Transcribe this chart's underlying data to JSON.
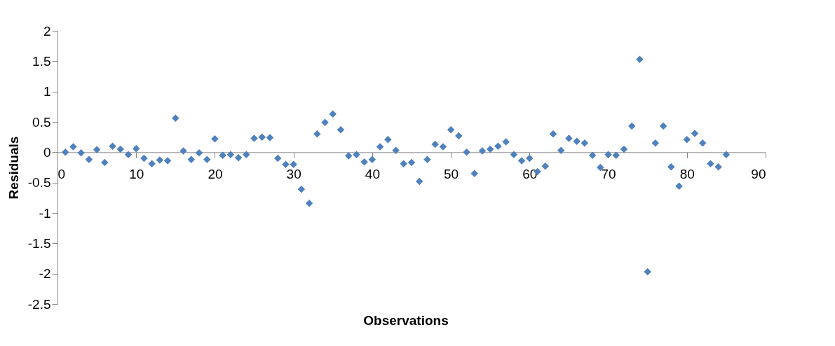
{
  "chart_data": {
    "type": "scatter",
    "xlabel": "Observations",
    "ylabel": "Residuals",
    "xlim": [
      0,
      90
    ],
    "xticks": [
      0,
      10,
      20,
      30,
      40,
      50,
      60,
      70,
      80,
      90
    ],
    "ylim": [
      -2.5,
      2
    ],
    "yticks": [
      -2.5,
      -2,
      -1.5,
      -1,
      -0.5,
      0,
      0.5,
      1,
      1.5,
      2
    ],
    "grid": false,
    "legend": false,
    "marker": "diamond",
    "series": [
      {
        "color": "#4f81bd",
        "x": [
          1,
          2,
          3,
          4,
          5,
          6,
          7,
          8,
          9,
          10,
          11,
          12,
          13,
          14,
          15,
          16,
          17,
          18,
          19,
          20,
          21,
          22,
          23,
          24,
          25,
          26,
          27,
          28,
          29,
          30,
          31,
          32,
          33,
          34,
          35,
          36,
          37,
          38,
          39,
          40,
          41,
          42,
          43,
          44,
          45,
          46,
          47,
          48,
          49,
          50,
          51,
          52,
          53,
          54,
          55,
          56,
          57,
          58,
          59,
          60,
          61,
          62,
          63,
          64,
          65,
          66,
          67,
          68,
          69,
          70,
          71,
          72,
          73,
          74,
          75,
          76,
          77,
          78,
          79,
          80,
          81,
          82,
          83,
          84,
          85
        ],
        "values": [
          0.0,
          0.09,
          -0.01,
          -0.12,
          0.04,
          -0.17,
          0.1,
          0.05,
          -0.04,
          0.06,
          -0.1,
          -0.19,
          -0.13,
          -0.14,
          0.56,
          0.02,
          -0.12,
          -0.01,
          -0.12,
          0.22,
          -0.05,
          -0.04,
          -0.09,
          -0.04,
          0.23,
          0.25,
          0.24,
          -0.1,
          -0.2,
          -0.2,
          -0.61,
          -0.84,
          0.3,
          0.49,
          0.63,
          0.37,
          -0.06,
          -0.04,
          -0.16,
          -0.12,
          0.09,
          0.21,
          0.03,
          -0.19,
          -0.17,
          -0.48,
          -0.12,
          0.13,
          0.09,
          0.37,
          0.27,
          0.0,
          -0.35,
          0.02,
          0.05,
          0.1,
          0.17,
          -0.04,
          -0.14,
          -0.1,
          -0.32,
          -0.23,
          0.3,
          0.03,
          0.23,
          0.18,
          0.15,
          -0.05,
          -0.25,
          -0.04,
          -0.05,
          0.05,
          0.43,
          1.53,
          -1.97,
          0.15,
          0.43,
          -0.24,
          -0.56,
          0.21,
          0.31,
          0.15,
          -0.19,
          -0.24,
          -0.04
        ]
      }
    ]
  }
}
